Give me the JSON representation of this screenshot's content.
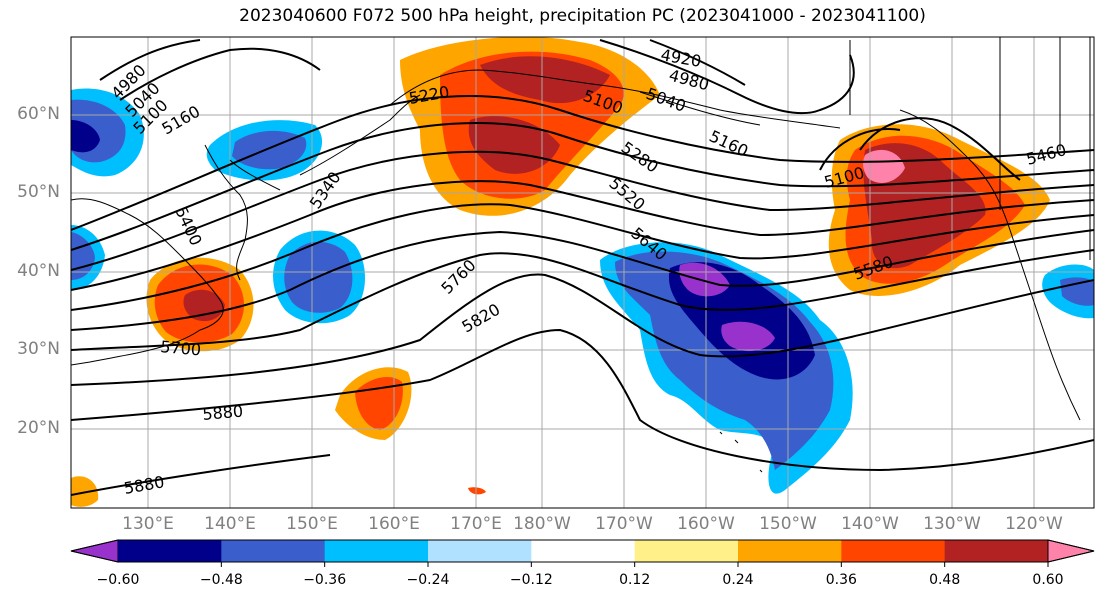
{
  "title": "2023040600 F072 500 hPa height, precipitation PC (2023041000 - 2023041100)",
  "lat_labels": [
    "60°N",
    "50°N",
    "40°N",
    "30°N",
    "20°N"
  ],
  "lon_labels": [
    "130°E",
    "140°E",
    "150°E",
    "160°E",
    "170°E",
    "180°W",
    "170°W",
    "160°W",
    "150°W",
    "140°W",
    "130°W",
    "120°W"
  ],
  "contour_labels": [
    "4980",
    "5040",
    "5100",
    "5160",
    "5220",
    "4920",
    "4980",
    "5040",
    "5100",
    "5280",
    "5160",
    "5340",
    "5400",
    "5520",
    "5640",
    "5100",
    "5460",
    "5760",
    "5580",
    "5700",
    "5820",
    "5880",
    "5880"
  ],
  "colorbar": {
    "colors": [
      "#9932cc",
      "#00008b",
      "#3a5fcd",
      "#00bfff",
      "#b0e2ff",
      "#ffffff",
      "#fff08a",
      "#ffa500",
      "#ff4500",
      "#b22222",
      "#ff82ab"
    ],
    "tick_labels": [
      "−0.60",
      "−0.48",
      "−0.36",
      "−0.24",
      "−0.12",
      "0.12",
      "0.24",
      "0.36",
      "0.48",
      "0.60"
    ]
  }
}
